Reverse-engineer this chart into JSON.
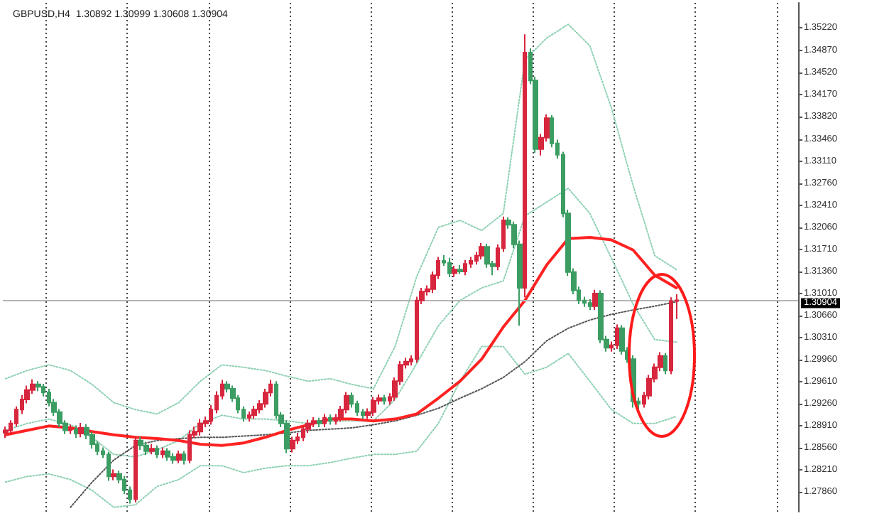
{
  "chart_data": {
    "type": "candlestick",
    "title": "GBPUSD,H4  1.30892 1.30999 1.30608 1.30904",
    "categories": [
      null,
      null,
      null,
      null,
      null,
      null,
      null,
      null,
      null,
      null,
      null,
      null,
      null,
      null,
      null,
      null,
      null,
      null,
      null,
      null,
      null,
      null,
      null,
      null,
      null,
      null,
      null,
      null,
      null,
      null,
      null,
      null,
      null,
      null,
      null,
      null,
      null,
      null,
      null,
      null,
      null,
      null,
      null,
      null,
      null,
      null,
      null,
      null,
      null,
      null,
      null,
      null,
      null,
      null,
      null,
      null,
      null,
      null,
      null,
      null,
      null,
      null,
      null,
      null,
      null,
      null,
      null,
      null,
      null,
      null,
      null,
      null,
      null,
      null,
      null,
      null,
      null,
      null,
      null,
      null,
      null,
      null,
      null,
      null,
      null,
      null,
      null,
      null,
      null,
      null,
      null,
      null,
      null,
      null,
      null,
      null,
      null,
      null,
      null,
      null,
      null,
      null,
      null,
      null,
      null,
      null,
      null,
      null,
      null,
      null,
      null,
      null,
      null,
      null,
      null,
      null,
      null,
      null,
      null,
      null,
      null,
      null,
      null,
      null,
      null,
      null,
      null,
      null,
      null,
      null,
      null,
      null,
      null,
      null,
      null,
      null,
      null,
      null,
      null,
      null,
      null,
      null,
      null,
      null,
      null,
      null,
      null
    ],
    "ohlc": [
      [
        1.288,
        1.289,
        1.2872,
        1.2884
      ],
      [
        1.2884,
        1.29,
        1.2878,
        1.2895
      ],
      [
        1.2895,
        1.2922,
        1.289,
        1.2917
      ],
      [
        1.2917,
        1.294,
        1.291,
        1.2933
      ],
      [
        1.2933,
        1.2955,
        1.2927,
        1.2948
      ],
      [
        1.2948,
        1.2965,
        1.2942,
        1.2957
      ],
      [
        1.2957,
        1.2962,
        1.2946,
        1.2953
      ],
      [
        1.2953,
        1.2958,
        1.2938,
        1.2944
      ],
      [
        1.2944,
        1.295,
        1.2922,
        1.2928
      ],
      [
        1.2928,
        1.2934,
        1.2907,
        1.2913
      ],
      [
        1.2913,
        1.2918,
        1.2889,
        1.2895
      ],
      [
        1.2895,
        1.29,
        1.2878,
        1.2884
      ],
      [
        1.2884,
        1.2893,
        1.2878,
        1.2886
      ],
      [
        1.2886,
        1.2892,
        1.2872,
        1.2879
      ],
      [
        1.2879,
        1.2896,
        1.2873,
        1.2888
      ],
      [
        1.2888,
        1.2894,
        1.287,
        1.2877
      ],
      [
        1.2877,
        1.2882,
        1.2855,
        1.2862
      ],
      [
        1.2862,
        1.2867,
        1.2845,
        1.2851
      ],
      [
        1.2851,
        1.2857,
        1.284,
        1.2846
      ],
      [
        1.2846,
        1.285,
        1.2804,
        1.2811
      ],
      [
        1.2811,
        1.2822,
        1.2805,
        1.2815
      ],
      [
        1.2815,
        1.282,
        1.28,
        1.2806
      ],
      [
        1.2806,
        1.2812,
        1.2783,
        1.2789
      ],
      [
        1.2789,
        1.2795,
        1.2768,
        1.2775
      ],
      [
        1.2775,
        1.2875,
        1.277,
        1.2868
      ],
      [
        1.2868,
        1.2874,
        1.2853,
        1.286
      ],
      [
        1.286,
        1.2866,
        1.2845,
        1.2851
      ],
      [
        1.2851,
        1.2862,
        1.2846,
        1.2855
      ],
      [
        1.2855,
        1.286,
        1.284,
        1.2846
      ],
      [
        1.2846,
        1.2857,
        1.284,
        1.2851
      ],
      [
        1.2851,
        1.2856,
        1.2836,
        1.2842
      ],
      [
        1.2842,
        1.2848,
        1.2831,
        1.2837
      ],
      [
        1.2837,
        1.2852,
        1.2832,
        1.2846
      ],
      [
        1.2846,
        1.2851,
        1.283,
        1.2837
      ],
      [
        1.2837,
        1.2884,
        1.2832,
        1.2877
      ],
      [
        1.2877,
        1.289,
        1.2872,
        1.2882
      ],
      [
        1.2882,
        1.2902,
        1.2876,
        1.2895
      ],
      [
        1.2895,
        1.2906,
        1.2889,
        1.2899
      ],
      [
        1.2899,
        1.2924,
        1.2893,
        1.2917
      ],
      [
        1.2917,
        1.2946,
        1.2911,
        1.2939
      ],
      [
        1.2939,
        1.2964,
        1.2933,
        1.2957
      ],
      [
        1.2957,
        1.2962,
        1.2944,
        1.295
      ],
      [
        1.295,
        1.2955,
        1.2929,
        1.2935
      ],
      [
        1.2935,
        1.294,
        1.2911,
        1.2917
      ],
      [
        1.2917,
        1.2922,
        1.2898,
        1.2904
      ],
      [
        1.2904,
        1.2914,
        1.2898,
        1.2908
      ],
      [
        1.2908,
        1.2923,
        1.2902,
        1.2917
      ],
      [
        1.2917,
        1.2932,
        1.2911,
        1.2926
      ],
      [
        1.2926,
        1.295,
        1.292,
        1.2944
      ],
      [
        1.2944,
        1.2964,
        1.2938,
        1.2957
      ],
      [
        1.2957,
        1.2962,
        1.2902,
        1.2908
      ],
      [
        1.2908,
        1.2913,
        1.2889,
        1.2895
      ],
      [
        1.2895,
        1.29,
        1.2848,
        1.2855
      ],
      [
        1.2855,
        1.2874,
        1.2849,
        1.2868
      ],
      [
        1.2868,
        1.288,
        1.2862,
        1.2873
      ],
      [
        1.2873,
        1.2892,
        1.2867,
        1.2886
      ],
      [
        1.2886,
        1.2901,
        1.288,
        1.2895
      ],
      [
        1.2895,
        1.2905,
        1.2889,
        1.2899
      ],
      [
        1.2899,
        1.2904,
        1.2889,
        1.2895
      ],
      [
        1.2895,
        1.291,
        1.2889,
        1.2904
      ],
      [
        1.2904,
        1.2909,
        1.2893,
        1.2899
      ],
      [
        1.2899,
        1.291,
        1.2893,
        1.2904
      ],
      [
        1.2904,
        1.2923,
        1.2898,
        1.2917
      ],
      [
        1.2917,
        1.2945,
        1.2911,
        1.2939
      ],
      [
        1.2939,
        1.2944,
        1.292,
        1.2926
      ],
      [
        1.2926,
        1.2931,
        1.2907,
        1.2913
      ],
      [
        1.2913,
        1.2918,
        1.2902,
        1.2908
      ],
      [
        1.2908,
        1.2919,
        1.2902,
        1.2913
      ],
      [
        1.2913,
        1.2937,
        1.2907,
        1.2931
      ],
      [
        1.2931,
        1.2941,
        1.2925,
        1.2935
      ],
      [
        1.2935,
        1.294,
        1.2925,
        1.2931
      ],
      [
        1.2931,
        1.2943,
        1.2925,
        1.2937
      ],
      [
        1.2937,
        1.2968,
        1.2931,
        1.2962
      ],
      [
        1.2962,
        1.2994,
        1.2956,
        1.2988
      ],
      [
        1.2988,
        1.2999,
        1.2982,
        1.2993
      ],
      [
        1.2993,
        1.3003,
        1.2987,
        1.2997
      ],
      [
        1.2997,
        1.3096,
        1.2991,
        1.309
      ],
      [
        1.309,
        1.311,
        1.3084,
        1.3104
      ],
      [
        1.3104,
        1.3114,
        1.3098,
        1.3108
      ],
      [
        1.3108,
        1.3136,
        1.3102,
        1.313
      ],
      [
        1.313,
        1.3159,
        1.3124,
        1.3153
      ],
      [
        1.3153,
        1.3162,
        1.3145,
        1.315
      ],
      [
        1.315,
        1.3158,
        1.3127,
        1.3133
      ],
      [
        1.3133,
        1.3145,
        1.3127,
        1.3139
      ],
      [
        1.3139,
        1.3146,
        1.3132,
        1.3136
      ],
      [
        1.3136,
        1.3154,
        1.313,
        1.3148
      ],
      [
        1.3148,
        1.3159,
        1.3142,
        1.3153
      ],
      [
        1.3153,
        1.3167,
        1.3147,
        1.3161
      ],
      [
        1.3161,
        1.3181,
        1.3155,
        1.3175
      ],
      [
        1.3175,
        1.318,
        1.3142,
        1.3148
      ],
      [
        1.3148,
        1.3153,
        1.313,
        1.3144
      ],
      [
        1.3144,
        1.3179,
        1.3138,
        1.3173
      ],
      [
        1.3173,
        1.3223,
        1.3167,
        1.3217
      ],
      [
        1.3217,
        1.3222,
        1.3204,
        1.321
      ],
      [
        1.321,
        1.3215,
        1.3173,
        1.3179
      ],
      [
        1.3179,
        1.3185,
        1.305,
        1.311
      ],
      [
        1.311,
        1.3512,
        1.3095,
        1.3483
      ],
      [
        1.3483,
        1.349,
        1.3433,
        1.3439
      ],
      [
        1.3439,
        1.3445,
        1.3324,
        1.333
      ],
      [
        1.333,
        1.3354,
        1.332,
        1.3348
      ],
      [
        1.3348,
        1.3385,
        1.3342,
        1.3379
      ],
      [
        1.3379,
        1.3384,
        1.3333,
        1.3339
      ],
      [
        1.3339,
        1.3345,
        1.3315,
        1.3321
      ],
      [
        1.3321,
        1.3326,
        1.3222,
        1.3228
      ],
      [
        1.3228,
        1.3234,
        1.3129,
        1.3135
      ],
      [
        1.3135,
        1.3141,
        1.31,
        1.3106
      ],
      [
        1.3106,
        1.3112,
        1.3084,
        1.309
      ],
      [
        1.309,
        1.3096,
        1.308,
        1.3086
      ],
      [
        1.3086,
        1.3092,
        1.3075,
        1.3081
      ],
      [
        1.3081,
        1.3107,
        1.3075,
        1.3101
      ],
      [
        1.3101,
        1.3106,
        1.3022,
        1.3028
      ],
      [
        1.3028,
        1.3034,
        1.3009,
        1.3015
      ],
      [
        1.3015,
        1.3025,
        1.3009,
        1.3019
      ],
      [
        1.3019,
        1.3052,
        1.3013,
        1.3046
      ],
      [
        1.3046,
        1.3051,
        1.3004,
        1.301
      ],
      [
        1.301,
        1.3016,
        1.2991,
        1.2997
      ],
      [
        1.2997,
        1.3003,
        1.292,
        1.293
      ],
      [
        1.293,
        1.2936,
        1.2915,
        1.2926
      ],
      [
        1.2926,
        1.2945,
        1.292,
        1.2939
      ],
      [
        1.2939,
        1.2972,
        1.2933,
        1.2966
      ],
      [
        1.2966,
        1.299,
        1.296,
        1.2984
      ],
      [
        1.2984,
        1.3008,
        1.2978,
        1.3002
      ],
      [
        1.3002,
        1.3007,
        1.2973,
        1.2979
      ],
      [
        1.2979,
        1.3095,
        1.2973,
        1.3089
      ],
      [
        1.30892,
        1.30999,
        1.30608,
        1.30904
      ],
      null,
      null,
      null,
      null,
      null,
      null,
      null,
      null,
      null,
      null,
      null,
      null,
      null,
      null,
      null,
      null,
      null,
      null,
      null,
      null,
      null,
      null
    ],
    "colors": [
      "#d7263d",
      "#d7263d",
      "#d7263d",
      "#d7263d",
      "#d7263d",
      "#d7263d",
      "#3c9d63",
      "#3c9d63",
      "#3c9d63",
      "#3c9d63",
      "#3c9d63",
      "#3c9d63",
      "#d7263d",
      "#3c9d63",
      "#d7263d",
      "#3c9d63",
      "#3c9d63",
      "#3c9d63",
      "#3c9d63",
      "#3c9d63",
      "#d7263d",
      "#3c9d63",
      "#3c9d63",
      "#3c9d63",
      "#d7263d",
      "#3c9d63",
      "#3c9d63",
      "#d7263d",
      "#3c9d63",
      "#d7263d",
      "#3c9d63",
      "#3c9d63",
      "#d7263d",
      "#3c9d63",
      "#d7263d",
      "#d7263d",
      "#d7263d",
      "#d7263d",
      "#d7263d",
      "#d7263d",
      "#d7263d",
      "#3c9d63",
      "#3c9d63",
      "#3c9d63",
      "#3c9d63",
      "#d7263d",
      "#d7263d",
      "#d7263d",
      "#d7263d",
      "#d7263d",
      "#3c9d63",
      "#3c9d63",
      "#3c9d63",
      "#d7263d",
      "#d7263d",
      "#d7263d",
      "#d7263d",
      "#d7263d",
      "#3c9d63",
      "#d7263d",
      "#3c9d63",
      "#d7263d",
      "#d7263d",
      "#d7263d",
      "#3c9d63",
      "#3c9d63",
      "#3c9d63",
      "#d7263d",
      "#d7263d",
      "#d7263d",
      "#3c9d63",
      "#d7263d",
      "#d7263d",
      "#d7263d",
      "#d7263d",
      "#d7263d",
      "#d7263d",
      "#d7263d",
      "#d7263d",
      "#d7263d",
      "#d7263d",
      "#3c9d63",
      "#3c9d63",
      "#d7263d",
      "#3c9d63",
      "#d7263d",
      "#d7263d",
      "#d7263d",
      "#d7263d",
      "#3c9d63",
      "#3c9d63",
      "#d7263d",
      "#d7263d",
      "#3c9d63",
      "#3c9d63",
      "#3c9d63",
      "#d7263d",
      "#3c9d63",
      "#3c9d63",
      "#d7263d",
      "#d7263d",
      "#3c9d63",
      "#3c9d63",
      "#3c9d63",
      "#3c9d63",
      "#3c9d63",
      "#3c9d63",
      "#3c9d63",
      "#3c9d63",
      "#d7263d",
      "#3c9d63",
      "#3c9d63",
      "#d7263d",
      "#d7263d",
      "#3c9d63",
      "#3c9d63",
      "#3c9d63",
      "#3c9d63",
      "#d7263d",
      "#d7263d",
      "#d7263d",
      "#d7263d",
      "#3c9d63",
      "#d7263d",
      "#d7263d",
      null,
      null,
      null,
      null,
      null,
      null,
      null,
      null,
      null,
      null,
      null,
      null,
      null,
      null,
      null,
      null,
      null,
      null,
      null,
      null,
      null,
      null
    ],
    "series": [
      {
        "type": "line",
        "color": "#8fd1b3",
        "line_style": "dotted",
        "values": [
          1.2966,
          null,
          null,
          null,
          1.2979,
          null,
          null,
          null,
          1.2988,
          null,
          null,
          null,
          1.2979,
          null,
          null,
          null,
          1.2957,
          null,
          null,
          null,
          1.2928,
          null,
          null,
          null,
          1.2917,
          null,
          null,
          null,
          1.291,
          null,
          null,
          null,
          1.2928,
          null,
          null,
          null,
          1.2962,
          null,
          null,
          null,
          1.2988,
          null,
          null,
          null,
          1.2984,
          null,
          null,
          null,
          1.2979,
          null,
          null,
          null,
          1.297,
          null,
          null,
          null,
          1.2962,
          null,
          null,
          null,
          1.2966,
          null,
          null,
          null,
          1.2957,
          null,
          null,
          null,
          1.295,
          null,
          null,
          null,
          1.3017,
          null,
          null,
          null,
          1.3128,
          null,
          null,
          null,
          1.3206,
          null,
          null,
          null,
          1.3217,
          null,
          null,
          null,
          1.3201,
          null,
          null,
          null,
          1.3228,
          null,
          null,
          null,
          1.3472,
          null,
          null,
          null,
          1.3506,
          null,
          null,
          null,
          1.3528,
          null,
          null,
          null,
          1.3494,
          null,
          null,
          null,
          1.3395,
          null,
          null,
          null,
          1.3272,
          null,
          null,
          null,
          1.3161,
          null,
          null,
          null,
          1.3139,
          null,
          null,
          null,
          null,
          null,
          null,
          null,
          null,
          null,
          null,
          null,
          null,
          null,
          null,
          null,
          null,
          null,
          null,
          null,
          null,
          null,
          null
        ]
      },
      {
        "type": "line",
        "color": "#8fd1b3",
        "line_style": "dotted",
        "values": [
          1.2884,
          null,
          null,
          null,
          1.2895,
          null,
          null,
          null,
          1.2902,
          null,
          null,
          null,
          1.2893,
          null,
          null,
          null,
          1.2873,
          null,
          null,
          null,
          1.2846,
          null,
          null,
          null,
          1.2842,
          null,
          null,
          null,
          1.2853,
          null,
          null,
          null,
          1.2868,
          null,
          null,
          null,
          1.2895,
          null,
          null,
          null,
          1.2908,
          null,
          null,
          null,
          1.2902,
          null,
          null,
          null,
          1.2902,
          null,
          null,
          null,
          1.2899,
          null,
          null,
          null,
          1.2895,
          null,
          null,
          null,
          1.2899,
          null,
          null,
          null,
          1.2899,
          null,
          null,
          null,
          1.2899,
          null,
          null,
          null,
          1.2933,
          null,
          null,
          null,
          1.299,
          null,
          null,
          null,
          1.305,
          null,
          null,
          null,
          1.309,
          null,
          null,
          null,
          1.311,
          null,
          null,
          null,
          1.3121,
          null,
          null,
          null,
          1.3224,
          null,
          null,
          null,
          1.3246,
          null,
          null,
          null,
          1.3268,
          null,
          null,
          null,
          1.3228,
          null,
          null,
          null,
          1.3157,
          null,
          null,
          null,
          1.3084,
          null,
          null,
          null,
          1.3028,
          null,
          null,
          null,
          1.3024,
          null,
          null,
          null,
          null,
          null,
          null,
          null,
          null,
          null,
          null,
          null,
          null,
          null,
          null,
          null,
          null,
          null,
          null,
          null,
          null,
          null,
          null
        ]
      },
      {
        "type": "line",
        "color": "#8fd1b3",
        "line_style": "dotted",
        "values": [
          1.2802,
          null,
          null,
          null,
          1.2811,
          null,
          null,
          null,
          1.2815,
          null,
          null,
          null,
          1.2806,
          null,
          null,
          null,
          1.2789,
          null,
          null,
          null,
          1.2762,
          null,
          null,
          null,
          1.2766,
          null,
          null,
          null,
          1.2795,
          null,
          null,
          null,
          1.2806,
          null,
          null,
          null,
          1.2828,
          null,
          null,
          null,
          1.2828,
          null,
          null,
          null,
          1.2817,
          null,
          null,
          null,
          1.2824,
          null,
          null,
          null,
          1.2828,
          null,
          null,
          null,
          1.2828,
          null,
          null,
          null,
          1.2833,
          null,
          null,
          null,
          1.284,
          null,
          null,
          null,
          1.2846,
          null,
          null,
          null,
          1.2846,
          null,
          null,
          null,
          1.2851,
          null,
          null,
          null,
          1.2895,
          null,
          null,
          null,
          1.2962,
          null,
          null,
          null,
          1.3017,
          null,
          null,
          null,
          1.3017,
          null,
          null,
          null,
          1.2973,
          null,
          null,
          null,
          1.2984,
          null,
          null,
          null,
          1.3006,
          null,
          null,
          null,
          1.2962,
          null,
          null,
          null,
          1.2917,
          null,
          null,
          null,
          1.2895,
          null,
          null,
          null,
          1.2895,
          null,
          null,
          null,
          1.2906,
          null,
          null,
          null,
          null,
          null,
          null,
          null,
          null,
          null,
          null,
          null,
          null,
          null,
          null,
          null,
          null,
          null,
          null,
          null,
          null,
          null,
          null
        ]
      },
      {
        "type": "line",
        "color": "#555555",
        "line_style": "dotted",
        "values": [
          null,
          null,
          null,
          null,
          null,
          null,
          null,
          null,
          null,
          null,
          null,
          null,
          1.2762,
          null,
          null,
          null,
          1.2802,
          null,
          null,
          null,
          1.2837,
          null,
          null,
          null,
          1.286,
          null,
          null,
          null,
          1.2868,
          null,
          null,
          null,
          1.2871,
          null,
          null,
          null,
          1.2873,
          null,
          null,
          null,
          1.2873,
          null,
          null,
          null,
          1.2875,
          null,
          null,
          null,
          1.2877,
          null,
          null,
          null,
          1.288,
          null,
          null,
          null,
          1.2884,
          null,
          null,
          null,
          1.2886,
          null,
          null,
          null,
          1.2888,
          null,
          null,
          null,
          1.2893,
          null,
          null,
          null,
          1.2899,
          null,
          null,
          null,
          1.2908,
          null,
          null,
          null,
          1.2919,
          null,
          null,
          null,
          1.2935,
          null,
          null,
          null,
          1.295,
          null,
          null,
          null,
          1.2968,
          null,
          null,
          null,
          1.2993,
          null,
          null,
          null,
          1.3026,
          null,
          null,
          null,
          1.3046,
          null,
          null,
          null,
          1.3059,
          null,
          null,
          null,
          1.3068,
          null,
          null,
          null,
          1.3075,
          null,
          null,
          null,
          1.3081,
          null,
          null,
          null,
          1.3088,
          null,
          null,
          null,
          null,
          null,
          null,
          null,
          null,
          null,
          null,
          null,
          null,
          null,
          null,
          null,
          null,
          null,
          null,
          null,
          null,
          null,
          null
        ]
      },
      {
        "type": "line",
        "color": "#ff2222",
        "line_style": "solid",
        "values": [
          1.2877,
          null,
          null,
          null,
          1.2884,
          null,
          null,
          null,
          1.2891,
          null,
          null,
          null,
          1.2888,
          null,
          null,
          null,
          1.2882,
          null,
          null,
          null,
          1.2877,
          null,
          null,
          null,
          1.2873,
          null,
          null,
          null,
          1.2871,
          null,
          null,
          null,
          1.2868,
          null,
          null,
          null,
          1.2862,
          null,
          null,
          null,
          1.286,
          null,
          null,
          null,
          1.2864,
          null,
          null,
          null,
          1.2873,
          null,
          null,
          null,
          1.2884,
          null,
          null,
          null,
          1.2893,
          null,
          null,
          null,
          1.2902,
          null,
          null,
          null,
          1.2902,
          null,
          null,
          null,
          1.2899,
          null,
          null,
          null,
          1.2902,
          null,
          null,
          null,
          1.291,
          null,
          null,
          null,
          1.2935,
          null,
          null,
          null,
          1.2962,
          null,
          null,
          null,
          1.2997,
          null,
          null,
          null,
          1.3048,
          null,
          null,
          null,
          1.309,
          null,
          null,
          null,
          1.3146,
          null,
          null,
          null,
          1.3188,
          null,
          null,
          null,
          1.319,
          null,
          null,
          null,
          1.3186,
          null,
          null,
          null,
          1.317,
          null,
          null,
          null,
          1.313,
          null,
          null,
          null,
          1.311,
          null,
          null,
          null,
          null,
          null,
          null,
          null,
          null,
          null,
          null,
          null,
          null,
          null,
          null,
          null,
          null,
          null,
          null,
          null,
          null,
          null,
          null
        ]
      }
    ],
    "marker": "none",
    "ylim": [
      1.2755,
      1.3562
    ],
    "yticks": [
      {
        "value": 1.2786,
        "label": "1.27860"
      },
      {
        "value": 1.2821,
        "label": "1.28210"
      },
      {
        "value": 1.2856,
        "label": "1.28560"
      },
      {
        "value": 1.2891,
        "label": "1.28910"
      },
      {
        "value": 1.2926,
        "label": "1.29260"
      },
      {
        "value": 1.2961,
        "label": "1.29610"
      },
      {
        "value": 1.2996,
        "label": "1.29960"
      },
      {
        "value": 1.3031,
        "label": "1.30310"
      },
      {
        "value": 1.3066,
        "label": "1.30660"
      },
      {
        "value": 1.3101,
        "label": "1.31010"
      },
      {
        "value": 1.3136,
        "label": "1.31360"
      },
      {
        "value": 1.3171,
        "label": "1.31710"
      },
      {
        "value": 1.3206,
        "label": "1.32060"
      },
      {
        "value": 1.3241,
        "label": "1.32410"
      },
      {
        "value": 1.3276,
        "label": "1.32760"
      },
      {
        "value": 1.3311,
        "label": "1.33110"
      },
      {
        "value": 1.3346,
        "label": "1.33460"
      },
      {
        "value": 1.3382,
        "label": "1.33820"
      },
      {
        "value": 1.3417,
        "label": "1.34170"
      },
      {
        "value": 1.3452,
        "label": "1.34520"
      },
      {
        "value": 1.3487,
        "label": "1.34870"
      },
      {
        "value": 1.3522,
        "label": "1.35220"
      }
    ],
    "grid": "x",
    "tick_labels": "y",
    "ref_lines": [
      {
        "axis": "y",
        "value": 1.30904,
        "label": "1.30904",
        "color": "#b4b4b4"
      }
    ]
  }
}
